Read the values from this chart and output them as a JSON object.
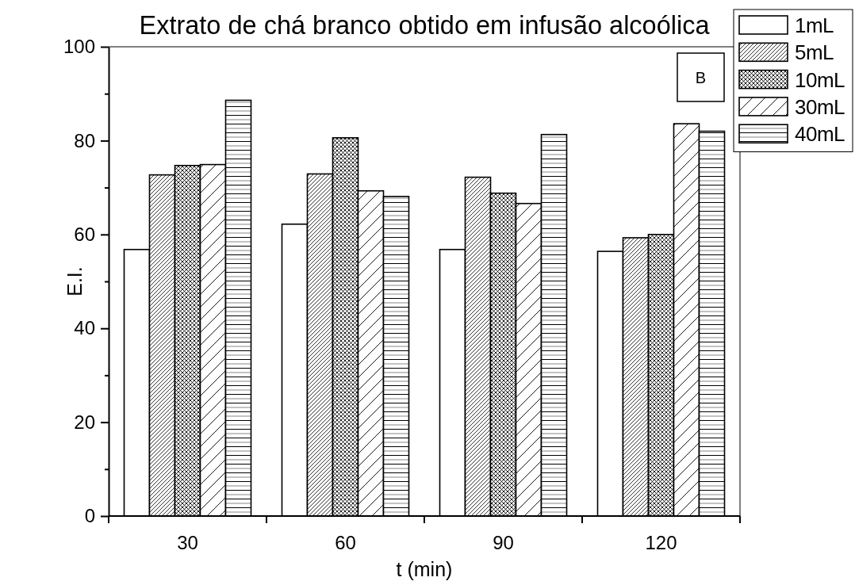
{
  "chart_data": {
    "type": "bar",
    "title": "Extrato de chá branco obtido em infusão alcoólica",
    "xlabel": "t (min)",
    "ylabel": "E.I.",
    "categories": [
      "30",
      "60",
      "90",
      "120"
    ],
    "series": [
      {
        "name": "1mL",
        "color": "#000000",
        "values": [
          56.8,
          62.2,
          56.8,
          56.4
        ]
      },
      {
        "name": "5mL",
        "color": "#000000",
        "values": [
          72.7,
          72.9,
          72.2,
          59.3
        ]
      },
      {
        "name": "10mL",
        "color": "#000000",
        "values": [
          74.7,
          80.6,
          68.8,
          60.0
        ]
      },
      {
        "name": "30mL",
        "color": "#000000",
        "values": [
          74.9,
          69.3,
          66.6,
          83.6
        ]
      },
      {
        "name": "40mL",
        "color": "#000000",
        "values": [
          88.6,
          68.1,
          81.3,
          82.0
        ]
      }
    ],
    "ylim": [
      0,
      100
    ],
    "yticks": [
      0,
      {
        "value": 10,
        "label": null
      },
      20,
      {
        "value": 30,
        "label": null
      },
      40,
      {
        "value": 50,
        "label": null
      },
      60,
      {
        "value": 70,
        "label": null
      },
      80,
      {
        "value": 90,
        "label": null
      },
      100
    ],
    "legend": "top right",
    "annotations": [
      "B"
    ]
  }
}
